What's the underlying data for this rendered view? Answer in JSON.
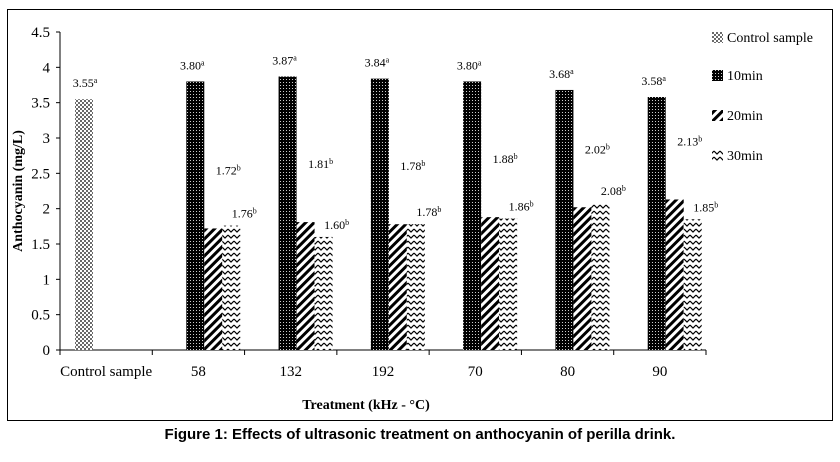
{
  "caption": "Figure 1: Effects of ultrasonic treatment on anthocyanin of perilla drink.",
  "chart_data": {
    "type": "bar",
    "title": "",
    "xlabel": "Treatment (kHz - °C)",
    "ylabel": "Anthocyanin (mg/L)",
    "ylim": [
      0,
      4.5
    ],
    "yticks": [
      "0",
      "0.5",
      "1",
      "1.5",
      "2",
      "2.5",
      "3",
      "3.5",
      "4",
      "4.5"
    ],
    "categories": [
      "Control sample",
      "58",
      "132",
      "192",
      "70",
      "80",
      "90"
    ],
    "legend_position": "right",
    "grid": false,
    "series": [
      {
        "name": "Control sample",
        "pattern": "dots-sparse",
        "values": [
          3.55,
          null,
          null,
          null,
          null,
          null,
          null
        ],
        "labels": [
          "3.55",
          null,
          null,
          null,
          null,
          null,
          null
        ],
        "sups": [
          "a",
          null,
          null,
          null,
          null,
          null,
          null
        ]
      },
      {
        "name": "10min",
        "pattern": "dots-dense",
        "values": [
          null,
          3.8,
          3.87,
          3.84,
          3.8,
          3.68,
          3.58
        ],
        "labels": [
          null,
          "3.80",
          "3.87",
          "3.84",
          "3.80",
          "3.68",
          "3.58"
        ],
        "sups": [
          null,
          "a",
          "a",
          "a",
          "a",
          "a",
          "a"
        ]
      },
      {
        "name": "20min",
        "pattern": "diagonal",
        "values": [
          null,
          1.72,
          1.81,
          1.78,
          1.88,
          2.02,
          2.13
        ],
        "labels": [
          null,
          "1.72",
          "1.81",
          "1.78",
          "1.88",
          "2.02",
          "2.13"
        ],
        "sups": [
          null,
          "b",
          "b",
          "b",
          "b",
          "b",
          "b"
        ]
      },
      {
        "name": "30min",
        "pattern": "zigzag",
        "values": [
          null,
          1.76,
          1.6,
          1.78,
          1.86,
          2.08,
          1.85
        ],
        "labels": [
          null,
          "1.76",
          "1.60",
          "1.78",
          "1.86",
          "2.08",
          "1.85"
        ],
        "sups": [
          null,
          "b",
          "b",
          "b",
          "b",
          "b",
          "b"
        ]
      }
    ]
  }
}
